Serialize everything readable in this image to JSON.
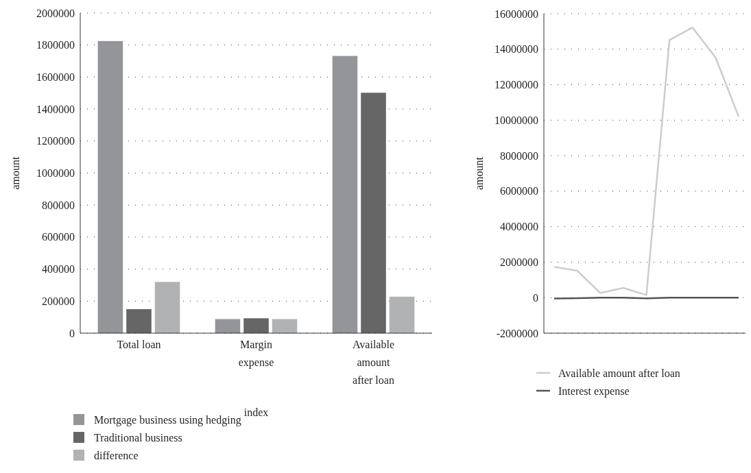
{
  "chart_data": [
    {
      "type": "bar",
      "xlabel": "index",
      "ylabel": "amount",
      "categories": [
        "Total loan",
        "Margin expense",
        "Available amount after loan"
      ],
      "series": [
        {
          "name": "Mortgage business using hedging",
          "color": "#939598",
          "values": [
            1825000,
            88000,
            1732000
          ]
        },
        {
          "name": "Traditional business",
          "color": "#666666",
          "values": [
            150000,
            93000,
            1502000
          ]
        },
        {
          "name": "difference",
          "color": "#b1b2b4",
          "values": [
            320000,
            88000,
            228000
          ]
        }
      ],
      "ylim": [
        0,
        2000000
      ],
      "yticks": [
        0,
        200000,
        400000,
        600000,
        800000,
        1000000,
        1200000,
        1400000,
        1600000,
        1800000,
        2000000
      ],
      "grid": "y",
      "legend": "bottom left"
    },
    {
      "type": "line",
      "ylabel": "amount",
      "categories": [
        null,
        null,
        null,
        null,
        null,
        null,
        null,
        null,
        null
      ],
      "series": [
        {
          "name": "Available amount after loan",
          "color": "#cccccc",
          "values": [
            1740000,
            1520000,
            260000,
            550000,
            150000,
            14520000,
            15220000,
            13530000,
            10200000
          ]
        },
        {
          "name": "Interest expense",
          "color": "#555555",
          "values": [
            -50000,
            -30000,
            0,
            0,
            -40000,
            0,
            0,
            0,
            0
          ]
        }
      ],
      "ylim": [
        -2000000,
        16000000
      ],
      "yticks": [
        -2000000,
        0,
        2000000,
        4000000,
        6000000,
        8000000,
        10000000,
        12000000,
        14000000,
        16000000
      ],
      "grid": "y",
      "legend": "bottom",
      "tick_labels": "y",
      "marker": "none",
      "line_style": "solid"
    }
  ]
}
